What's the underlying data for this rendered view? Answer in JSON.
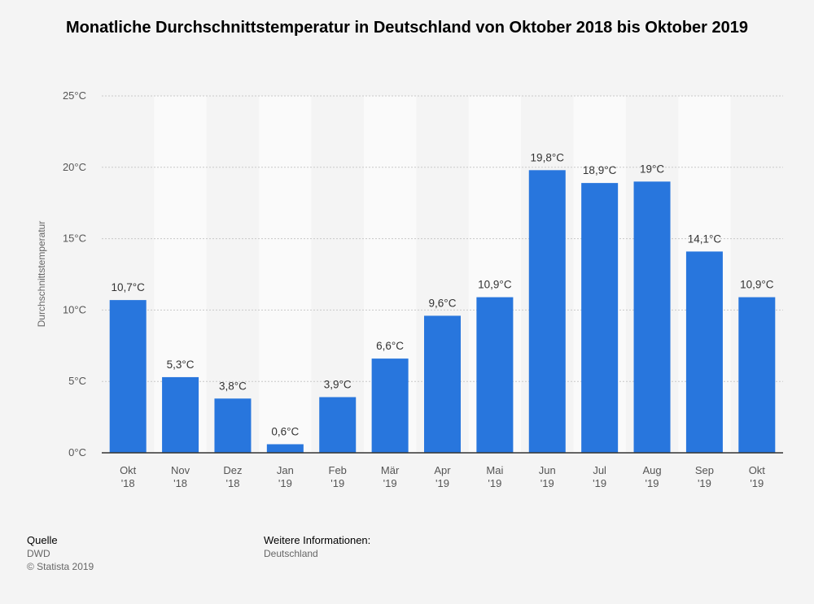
{
  "page": {
    "background": "#f4f4f4"
  },
  "chart_data": {
    "type": "bar",
    "title": "Monatliche Durchschnittstemperatur in Deutschland von Oktober 2018 bis Oktober 2019",
    "ylabel": "Durchschnittstemperatur",
    "xlabel": "",
    "ylim": [
      0,
      25
    ],
    "yticks": [
      0,
      5,
      10,
      15,
      20,
      25
    ],
    "ytick_labels": [
      "0°C",
      "5°C",
      "10°C",
      "15°C",
      "20°C",
      "25°C"
    ],
    "grid": true,
    "categories": [
      [
        "Okt",
        "'18"
      ],
      [
        "Nov",
        "'18"
      ],
      [
        "Dez",
        "'18"
      ],
      [
        "Jan",
        "'19"
      ],
      [
        "Feb",
        "'19"
      ],
      [
        "Mär",
        "'19"
      ],
      [
        "Apr",
        "'19"
      ],
      [
        "Mai",
        "'19"
      ],
      [
        "Jun",
        "'19"
      ],
      [
        "Jul",
        "'19"
      ],
      [
        "Aug",
        "'19"
      ],
      [
        "Sep",
        "'19"
      ],
      [
        "Okt",
        "'19"
      ]
    ],
    "values": [
      10.7,
      5.3,
      3.8,
      0.6,
      3.9,
      6.6,
      9.6,
      10.9,
      19.8,
      18.9,
      19,
      14.1,
      10.9
    ],
    "value_labels": [
      "10,7°C",
      "5,3°C",
      "3,8°C",
      "0,6°C",
      "3,9°C",
      "6,6°C",
      "9,6°C",
      "10,9°C",
      "19,8°C",
      "18,9°C",
      "19°C",
      "14,1°C",
      "10,9°C"
    ],
    "bar_color": "#2876dd",
    "band_color": "#fafafa"
  },
  "footer": {
    "source_heading": "Quelle",
    "source_lines": [
      "DWD",
      "© Statista 2019"
    ],
    "info_heading": "Weitere Informationen:",
    "info_lines": [
      "Deutschland"
    ]
  }
}
